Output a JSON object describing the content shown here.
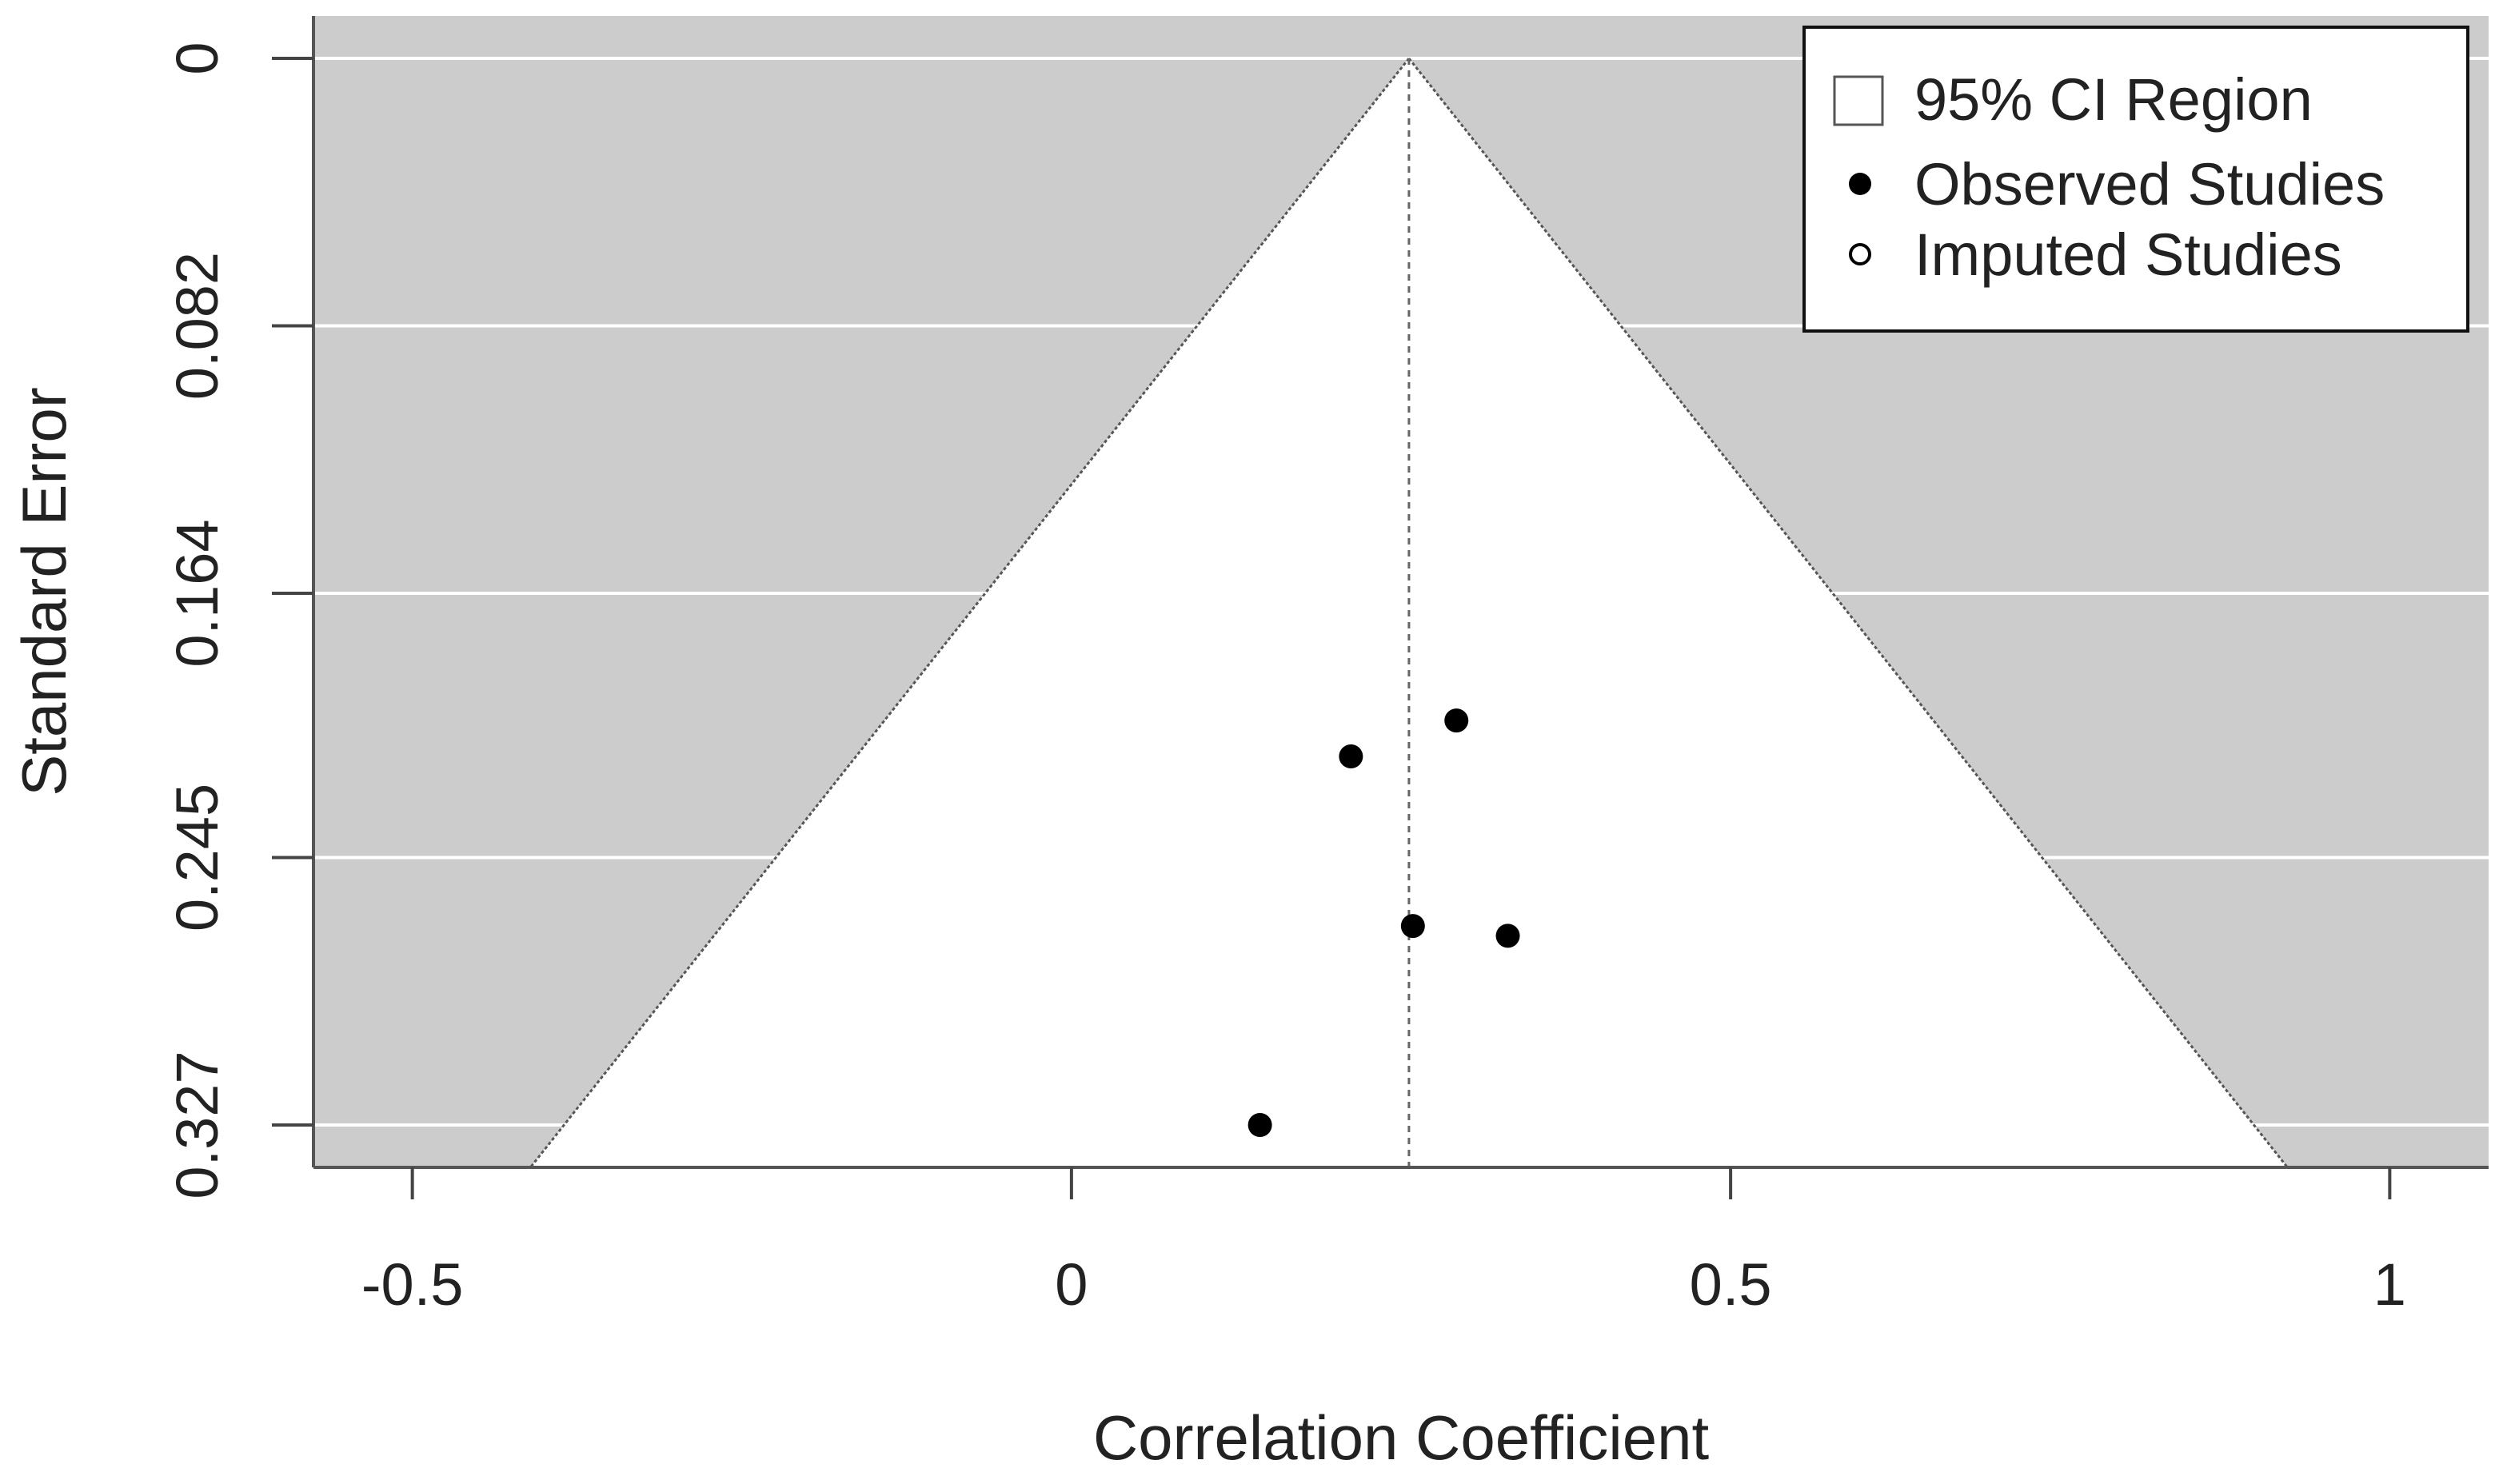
{
  "chart_data": {
    "type": "scatter",
    "subtype": "funnel",
    "xlabel": "Correlation Coefficient",
    "ylabel": "Standard Error",
    "xlim": [
      -0.575,
      1.075
    ],
    "ylim": [
      0.34,
      -0.013
    ],
    "y_reversed": true,
    "x_ticks": [
      -0.5,
      0,
      0.5,
      1
    ],
    "x_tick_labels": [
      "-0.5",
      "0",
      "0.5",
      "1"
    ],
    "y_ticks": [
      0,
      0.082,
      0.164,
      0.245,
      0.327
    ],
    "y_tick_labels": [
      "0",
      "0.082",
      "0.164",
      "0.245",
      "0.327"
    ],
    "grid": "horizontal",
    "background_color": "#cccccc",
    "region_color": "#ffffff",
    "point_color": "#000000",
    "pooled_estimate": 0.256,
    "ci_z": 1.96,
    "legend": {
      "position": "top-right",
      "entries": [
        {
          "label": "95% CI Region",
          "symbol": "square"
        },
        {
          "label": "Observed Studies",
          "symbol": "filled-circle"
        },
        {
          "label": "Imputed Studies",
          "symbol": "open-circle"
        }
      ]
    },
    "series": [
      {
        "name": "Observed Studies",
        "points": [
          {
            "x": 0.292,
            "y": 0.203
          },
          {
            "x": 0.212,
            "y": 0.214
          },
          {
            "x": 0.259,
            "y": 0.266
          },
          {
            "x": 0.331,
            "y": 0.269
          },
          {
            "x": 0.143,
            "y": 0.327
          }
        ]
      },
      {
        "name": "Imputed Studies",
        "points": []
      }
    ]
  }
}
